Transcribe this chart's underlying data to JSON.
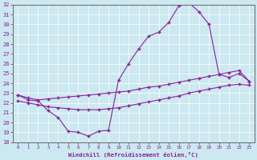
{
  "xlabel": "Windchill (Refroidissement éolien,°C)",
  "bg_color": "#cce8f0",
  "line_color": "#882299",
  "xlim": [
    -0.5,
    23.5
  ],
  "ylim": [
    18,
    32
  ],
  "xticks": [
    0,
    1,
    2,
    3,
    4,
    5,
    6,
    7,
    8,
    9,
    10,
    11,
    12,
    13,
    14,
    15,
    16,
    17,
    18,
    19,
    20,
    21,
    22,
    23
  ],
  "yticks": [
    18,
    19,
    20,
    21,
    22,
    23,
    24,
    25,
    26,
    27,
    28,
    29,
    30,
    31,
    32
  ],
  "line1_x": [
    0,
    1,
    2,
    3,
    4,
    5,
    6,
    7,
    8,
    9,
    10,
    11,
    12,
    13,
    14,
    15,
    16,
    17,
    18,
    19,
    20,
    21,
    22,
    23
  ],
  "line1_y": [
    22.8,
    22.3,
    22.2,
    21.2,
    20.5,
    19.1,
    19.0,
    18.6,
    19.1,
    19.2,
    24.3,
    26.0,
    27.5,
    28.8,
    29.2,
    30.2,
    31.9,
    32.2,
    31.3,
    30.0,
    24.9,
    24.6,
    25.0,
    24.2
  ],
  "line2_x": [
    0,
    1,
    2,
    3,
    4,
    5,
    6,
    7,
    8,
    9,
    10,
    11,
    12,
    13,
    14,
    15,
    16,
    17,
    18,
    19,
    20,
    21,
    22,
    23
  ],
  "line2_y": [
    22.8,
    22.5,
    22.3,
    22.4,
    22.5,
    22.6,
    22.7,
    22.8,
    22.9,
    23.0,
    23.1,
    23.2,
    23.4,
    23.6,
    23.7,
    23.9,
    24.1,
    24.3,
    24.5,
    24.7,
    24.9,
    25.1,
    25.3,
    24.2
  ],
  "line3_x": [
    0,
    1,
    2,
    3,
    4,
    5,
    6,
    7,
    8,
    9,
    10,
    11,
    12,
    13,
    14,
    15,
    16,
    17,
    18,
    19,
    20,
    21,
    22,
    23
  ],
  "line3_y": [
    22.2,
    22.0,
    21.8,
    21.6,
    21.5,
    21.4,
    21.3,
    21.3,
    21.3,
    21.4,
    21.5,
    21.7,
    21.9,
    22.1,
    22.3,
    22.5,
    22.7,
    23.0,
    23.2,
    23.4,
    23.6,
    23.8,
    23.9,
    23.8
  ]
}
